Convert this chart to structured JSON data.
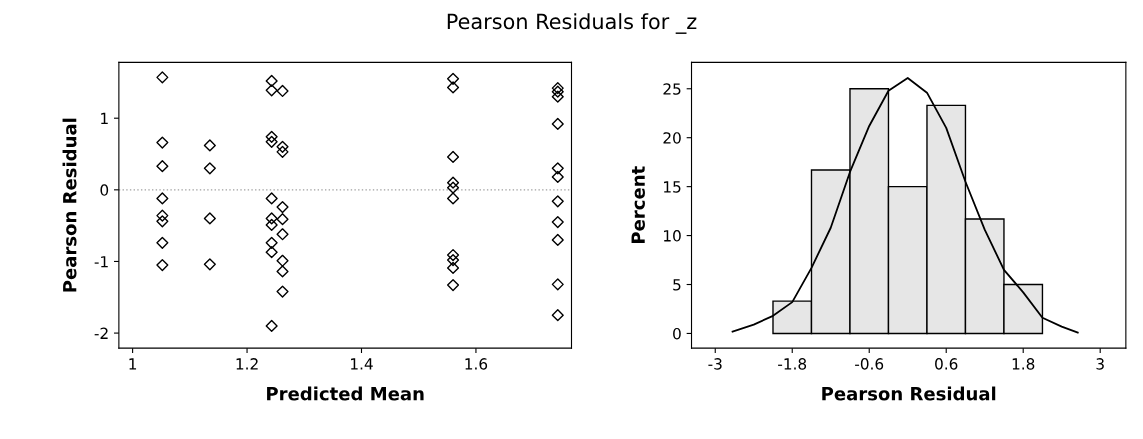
{
  "chart_data": [
    {
      "type": "scatter",
      "title": "Pearson Residuals for _z",
      "xlabel": "Predicted Mean",
      "ylabel": "Pearson Residual",
      "series": [
        {
          "color": "#000000",
          "x": [
            1.052,
            1.052,
            1.052,
            1.052,
            1.052,
            1.052,
            1.052,
            1.052,
            1.135,
            1.135,
            1.135,
            1.135,
            1.243,
            1.243,
            1.243,
            1.243,
            1.243,
            1.243,
            1.243,
            1.243,
            1.243,
            1.243,
            1.262,
            1.262,
            1.262,
            1.262,
            1.262,
            1.262,
            1.262,
            1.262,
            1.262,
            1.56,
            1.56,
            1.56,
            1.56,
            1.56,
            1.56,
            1.56,
            1.56,
            1.56,
            1.56,
            1.743,
            1.743,
            1.743,
            1.743,
            1.743,
            1.743,
            1.743,
            1.743,
            1.743,
            1.743,
            1.743
          ],
          "values": [
            1.57,
            0.66,
            0.33,
            -0.12,
            -0.36,
            -0.44,
            -0.74,
            -1.05,
            0.62,
            0.3,
            -0.4,
            -1.04,
            1.52,
            1.39,
            0.74,
            0.67,
            -0.12,
            -0.4,
            -0.49,
            -0.74,
            -0.87,
            -1.9,
            1.38,
            0.6,
            0.53,
            -0.24,
            -0.41,
            -0.62,
            -0.99,
            -1.14,
            -1.42,
            1.55,
            1.43,
            0.46,
            0.1,
            0.03,
            -0.12,
            -0.91,
            -0.98,
            -1.09,
            -1.33,
            1.42,
            1.37,
            1.3,
            0.92,
            0.3,
            0.18,
            -0.16,
            -0.45,
            -0.7,
            -1.32,
            -1.75
          ]
        }
      ],
      "marker": "diamond",
      "grid": false,
      "xlim": [
        0.976,
        1.767
      ],
      "xticks": [
        1,
        1.2,
        1.4,
        1.6
      ],
      "ylim": [
        -2.21,
        1.78
      ],
      "yticks": [
        -2,
        -1,
        0,
        1
      ],
      "ref_lines": [
        {
          "axis": "y",
          "value": 0,
          "color": "#a0a0a0",
          "line_style": "dotted"
        }
      ]
    },
    {
      "type": "histogram",
      "xlabel": "Pearson Residual",
      "ylabel": "Percent",
      "bins": [
        -2.1,
        -1.5,
        -0.9,
        -0.3,
        0.3,
        0.9,
        1.5,
        2.1
      ],
      "values": [
        3.3,
        16.7,
        25,
        15,
        23.3,
        11.7,
        5
      ],
      "color": "#e6e6e6",
      "series": [
        {
          "type": "line",
          "color": "#000000",
          "x": [
            -2.73,
            -2.4,
            -2.1,
            -1.8,
            -1.5,
            -1.2,
            -0.9,
            -0.6,
            -0.3,
            0,
            0.3,
            0.6,
            0.9,
            1.2,
            1.5,
            1.8,
            2.1,
            2.4,
            2.65
          ],
          "values": [
            0.2,
            0.9,
            1.8,
            3.2,
            6.7,
            10.8,
            16.5,
            21.2,
            24.8,
            26.1,
            24.6,
            21,
            15.5,
            10.6,
            6.5,
            4.2,
            1.6,
            0.7,
            0.1
          ]
        }
      ],
      "grid": false,
      "xlim": [
        -3.37,
        3.4
      ],
      "xticks": [
        -3,
        -1.8,
        -0.6,
        0.6,
        1.8,
        3
      ],
      "ylim": [
        -1.5,
        27.7
      ],
      "yticks": [
        0,
        5,
        10,
        15,
        20,
        25
      ]
    }
  ]
}
